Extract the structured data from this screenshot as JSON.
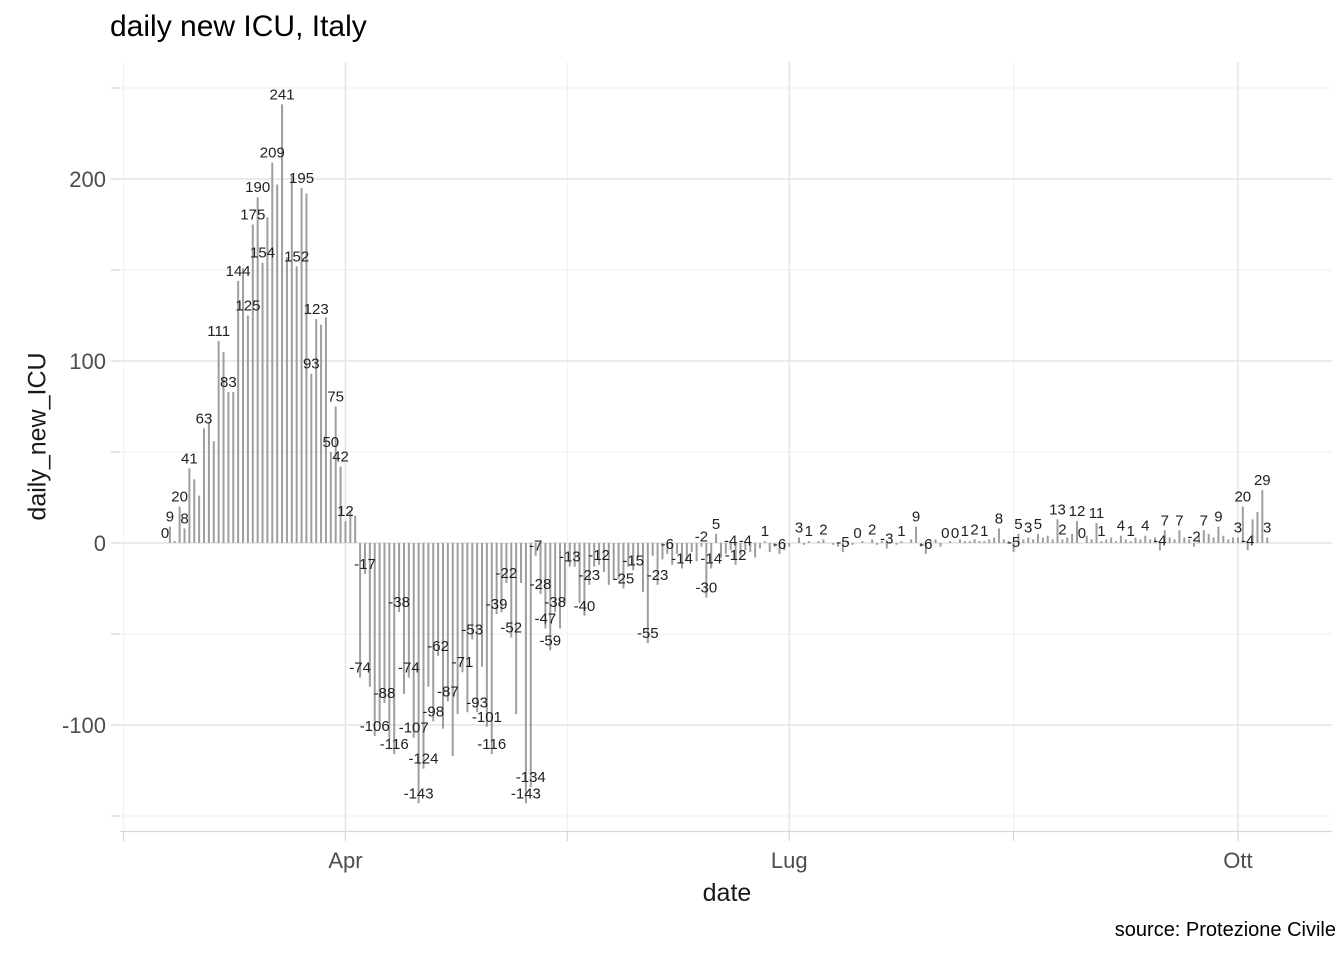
{
  "title": "daily new ICU, Italy",
  "x_axis": {
    "label": "date",
    "ticks": [
      "Apr",
      "Lug",
      "Ott"
    ]
  },
  "y_axis": {
    "label": "daily_new_ICU",
    "ticks": [
      "200",
      "100",
      "0",
      "-100"
    ]
  },
  "caption": "source: Protezione Civile",
  "colors": {
    "background": "#ffffff",
    "bar": "#9e9e9e",
    "grid_major": "#e4e4e4",
    "grid_minor": "#f2f2f2",
    "axis_line": "#d9d9d9",
    "tick": "#d9d9d9",
    "bar_label": "#212121",
    "tick_label": "#4d4d4d"
  },
  "chart_data": {
    "type": "bar",
    "title": "daily new ICU, Italy",
    "xlabel": "date",
    "ylabel": "daily_new_ICU",
    "x_start": "2020-02-24",
    "x_frequency": "daily",
    "x_tick_labels": [
      "Apr",
      "Lug",
      "Ott"
    ],
    "x_major_days": [
      37,
      128,
      220
    ],
    "x_minor_days": [
      -8.5,
      82.5,
      174
    ],
    "y_major_ticks": [
      200,
      100,
      0,
      -100
    ],
    "y_minor_ticks": [
      250,
      150,
      50,
      -50,
      -150
    ],
    "ylim": [
      -158,
      264
    ],
    "grid": true,
    "legend": false,
    "values": [
      0,
      9,
      1,
      20,
      8,
      41,
      35,
      26,
      63,
      66,
      56,
      111,
      105,
      83,
      83,
      144,
      151,
      125,
      175,
      190,
      154,
      179,
      209,
      197,
      241,
      157,
      202,
      152,
      195,
      192,
      93,
      123,
      120,
      124,
      50,
      75,
      42,
      12,
      18,
      15,
      -74,
      -17,
      -79,
      -106,
      -99,
      -88,
      -108,
      -116,
      -38,
      -83,
      -74,
      -107,
      -143,
      -124,
      -79,
      -98,
      -62,
      -102,
      -87,
      -117,
      -94,
      -71,
      -93,
      -53,
      -93,
      -68,
      -101,
      -116,
      -39,
      -38,
      -22,
      -52,
      -94,
      -22,
      -143,
      -134,
      -7,
      -28,
      -47,
      -59,
      -38,
      -47,
      -33,
      -13,
      -13,
      -33,
      -40,
      -23,
      -13,
      -12,
      -16,
      -23,
      -20,
      -20,
      -25,
      -13,
      -15,
      -8,
      -27,
      -55,
      -7,
      -23,
      -9,
      -6,
      -12,
      -6,
      -14,
      -10,
      -5,
      -10,
      -2,
      -30,
      -14,
      5,
      -8,
      -6,
      -4,
      -12,
      -7,
      -4,
      -5,
      -8,
      -3,
      1,
      -5,
      -2,
      -6,
      -4,
      -2,
      0,
      3,
      -1,
      1,
      0,
      1,
      2,
      0,
      -1,
      -2,
      -5,
      1,
      -1,
      0,
      1,
      0,
      2,
      -1,
      1,
      -3,
      0,
      -1,
      1,
      0,
      2,
      9,
      -2,
      -6,
      1,
      2,
      -2,
      0,
      1,
      0,
      2,
      1,
      1,
      2,
      1,
      1,
      2,
      3,
      8,
      2,
      1,
      -5,
      5,
      2,
      3,
      2,
      5,
      3,
      4,
      2,
      13,
      2,
      3,
      5,
      12,
      0,
      4,
      2,
      11,
      1,
      2,
      3,
      1,
      4,
      2,
      1,
      3,
      2,
      4,
      2,
      3,
      -4,
      7,
      3,
      2,
      7,
      3,
      2,
      -2,
      4,
      7,
      5,
      3,
      9,
      4,
      2,
      3,
      3,
      20,
      -4,
      13,
      17,
      29,
      3
    ],
    "label_shown": [
      1,
      1,
      0,
      1,
      1,
      1,
      0,
      0,
      1,
      0,
      0,
      1,
      0,
      1,
      0,
      1,
      0,
      1,
      1,
      1,
      1,
      0,
      1,
      0,
      1,
      0,
      0,
      1,
      1,
      0,
      1,
      1,
      0,
      0,
      1,
      1,
      1,
      1,
      0,
      0,
      1,
      1,
      0,
      1,
      0,
      1,
      0,
      1,
      1,
      0,
      1,
      1,
      1,
      1,
      0,
      1,
      1,
      0,
      1,
      0,
      0,
      1,
      0,
      1,
      1,
      0,
      1,
      1,
      1,
      0,
      1,
      1,
      0,
      0,
      1,
      1,
      1,
      1,
      1,
      1,
      1,
      0,
      0,
      1,
      0,
      0,
      1,
      1,
      0,
      1,
      0,
      0,
      0,
      0,
      1,
      0,
      1,
      0,
      0,
      1,
      0,
      1,
      0,
      1,
      0,
      0,
      1,
      0,
      0,
      0,
      1,
      1,
      1,
      1,
      0,
      0,
      1,
      1,
      0,
      1,
      0,
      0,
      0,
      1,
      0,
      0,
      1,
      0,
      0,
      0,
      1,
      0,
      1,
      0,
      0,
      1,
      0,
      0,
      0,
      1,
      0,
      0,
      1,
      0,
      0,
      1,
      0,
      0,
      1,
      0,
      0,
      1,
      0,
      0,
      1,
      0,
      1,
      0,
      0,
      0,
      1,
      0,
      1,
      0,
      1,
      0,
      1,
      0,
      1,
      0,
      0,
      1,
      0,
      0,
      1,
      1,
      0,
      1,
      0,
      1,
      0,
      0,
      0,
      1,
      1,
      0,
      0,
      1,
      1,
      0,
      0,
      1,
      1,
      0,
      0,
      0,
      1,
      0,
      1,
      0,
      0,
      1,
      0,
      0,
      1,
      1,
      0,
      0,
      1,
      0,
      0,
      1,
      0,
      1,
      0,
      0,
      1,
      0,
      0,
      0,
      1,
      1,
      1,
      0,
      0,
      1,
      1
    ]
  }
}
